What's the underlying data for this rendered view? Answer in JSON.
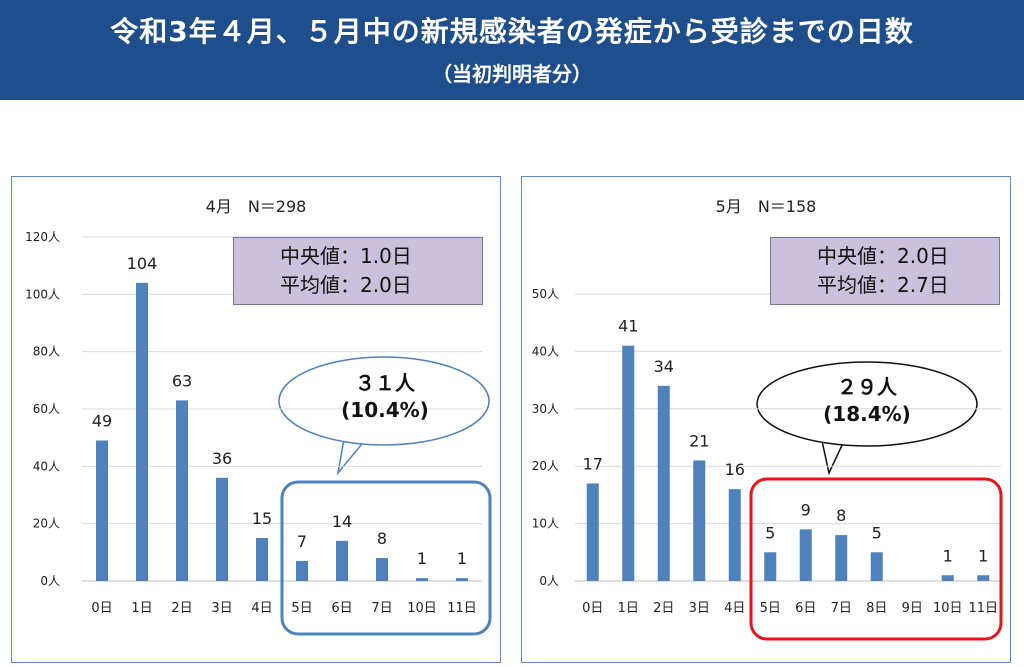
{
  "header": {
    "title": "令和3年４月、５月中の新規感染者の発症から受診までの日数",
    "subtitle": "（当初判明者分）"
  },
  "chart_data": [
    {
      "type": "bar",
      "title": "4月　N＝298",
      "categories": [
        "0日",
        "1日",
        "2日",
        "3日",
        "4日",
        "5日",
        "6日",
        "7日",
        "10日",
        "11日"
      ],
      "values": [
        49,
        104,
        63,
        36,
        15,
        7,
        14,
        8,
        1,
        1
      ],
      "data_labels": [
        "49",
        "104",
        "63",
        "36",
        "15",
        "7",
        "14",
        "8",
        "1",
        "1"
      ],
      "ylim": [
        0,
        120
      ],
      "yticks": [
        0,
        20,
        40,
        60,
        80,
        100,
        120
      ],
      "ytick_labels": [
        "0人",
        "20人",
        "40人",
        "60人",
        "80人",
        "100人",
        "120人"
      ],
      "grid": true,
      "bar_color": "#4f81bd",
      "stats": {
        "median": "中央値：1.0日",
        "mean": "平均値：2.0日"
      },
      "highlight": {
        "from_category": "5日",
        "to_category": "11日",
        "border_color": "#4f81bd",
        "line1": "３１人",
        "line2": "(10.4%)"
      }
    },
    {
      "type": "bar",
      "title": "5月　N＝158",
      "categories": [
        "0日",
        "1日",
        "2日",
        "3日",
        "4日",
        "5日",
        "6日",
        "7日",
        "8日",
        "9日",
        "10日",
        "11日"
      ],
      "values": [
        17,
        41,
        34,
        21,
        16,
        5,
        9,
        8,
        5,
        0,
        1,
        1
      ],
      "data_labels": [
        "17",
        "41",
        "34",
        "21",
        "16",
        "5",
        "9",
        "8",
        "5",
        "",
        "1",
        "1"
      ],
      "ylim": [
        0,
        50
      ],
      "yticks": [
        0,
        10,
        20,
        30,
        40,
        50
      ],
      "ytick_labels": [
        "0人",
        "10人",
        "20人",
        "30人",
        "40人",
        "50人"
      ],
      "grid": true,
      "bar_color": "#4f81bd",
      "stats": {
        "median": "中央値：2.0日",
        "mean": "平均値：2.7日"
      },
      "highlight": {
        "from_category": "5日",
        "to_category": "11日",
        "border_color": "#e8141c",
        "line1": "２９人",
        "line2": "(18.4%)"
      }
    }
  ]
}
